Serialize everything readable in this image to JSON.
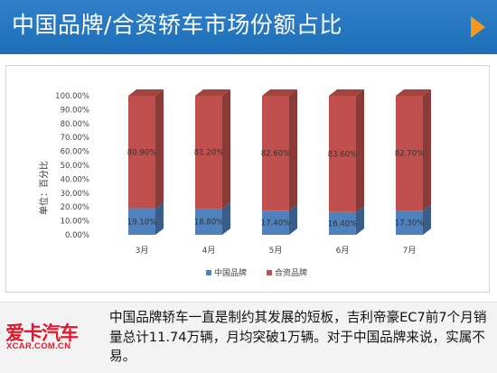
{
  "header": {
    "title": "中国品牌/合资轿车市场份额占比",
    "arrow_color": "#f39a1e"
  },
  "chart_data": {
    "type": "bar",
    "stacked": true,
    "categories": [
      "3月",
      "4月",
      "5月",
      "6月",
      "7月"
    ],
    "series": [
      {
        "name": "中国品牌",
        "values": [
          19.1,
          18.8,
          17.4,
          16.4,
          17.3
        ],
        "labels": [
          "19.10%",
          "18.80%",
          "17.40%",
          "16.40%",
          "17.30%"
        ],
        "color": "#4f81bd"
      },
      {
        "name": "合资品牌",
        "values": [
          80.9,
          81.2,
          82.6,
          83.6,
          82.7
        ],
        "labels": [
          "80.90%",
          "81.20%",
          "82.60%",
          "83.60%",
          "82.70%"
        ],
        "color": "#c0504d"
      }
    ],
    "ylabel": "单位：百分比",
    "ylim": [
      0,
      100
    ],
    "yticks": [
      "0.00%",
      "10.00%",
      "20.00%",
      "30.00%",
      "40.00%",
      "50.00%",
      "60.00%",
      "70.00%",
      "80.00%",
      "90.00%",
      "100.00%"
    ],
    "legend_position": "bottom",
    "grid": false
  },
  "footer": {
    "logo_text": "爱卡汽车",
    "logo_sub": "XCAR.COM.CN",
    "caption": "中国品牌轿车一直是制约其发展的短板，吉利帝豪EC7前7个月销量总计11.74万辆，月均突破1万辆。对于中国品牌来说，实属不易。"
  }
}
